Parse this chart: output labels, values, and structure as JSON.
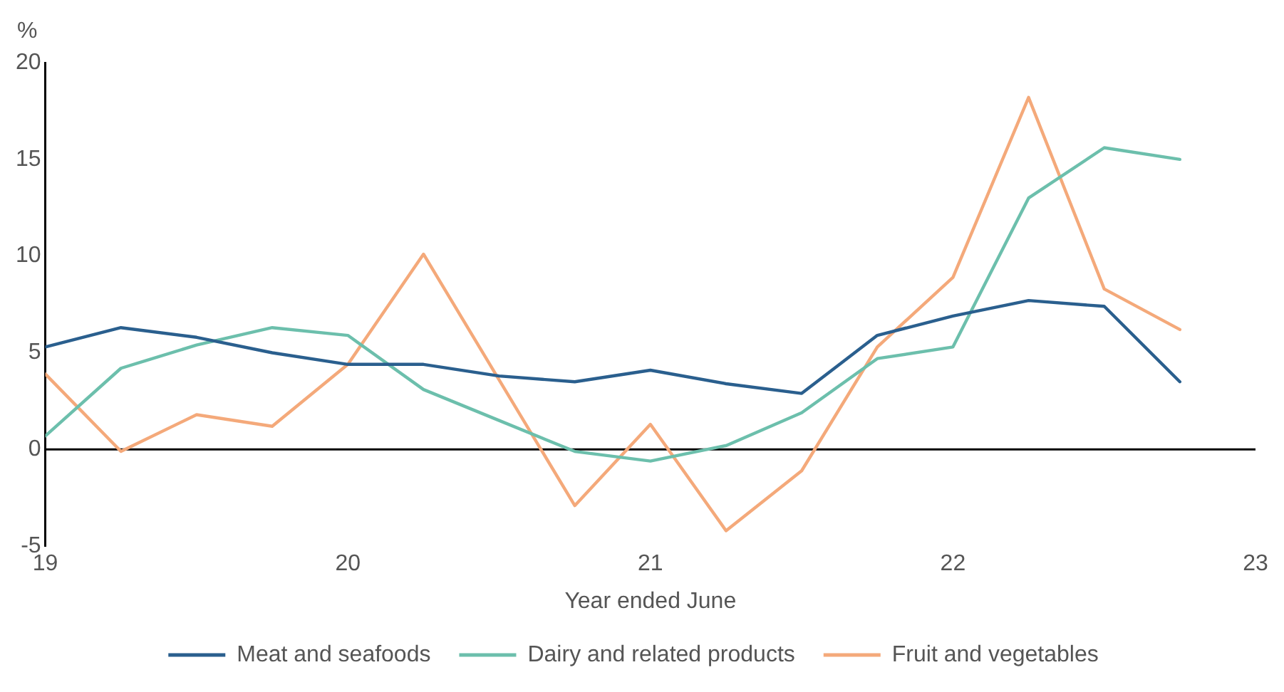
{
  "chart_data": {
    "type": "line",
    "xlabel": "Year ended June",
    "ylabel": "%",
    "x": [
      19,
      19.25,
      19.5,
      19.75,
      20,
      20.25,
      20.5,
      20.75,
      21,
      21.25,
      21.5,
      21.75,
      22,
      22.25,
      22.5,
      22.75
    ],
    "series": [
      {
        "name": "Meat and seafoods",
        "color": "#2a5f8e",
        "values": [
          5.3,
          6.3,
          5.8,
          5.0,
          4.4,
          4.4,
          3.8,
          3.5,
          4.1,
          3.4,
          2.9,
          5.9,
          6.9,
          7.7,
          7.4,
          3.5
        ]
      },
      {
        "name": "Dairy and related products",
        "color": "#6cbfac",
        "values": [
          0.7,
          4.2,
          5.4,
          6.3,
          5.9,
          3.1,
          1.5,
          -0.1,
          -0.6,
          0.2,
          1.9,
          4.7,
          5.3,
          13.0,
          15.6,
          15.0
        ]
      },
      {
        "name": "Fruit and vegetables",
        "color": "#f4a97a",
        "values": [
          3.9,
          -0.1,
          1.8,
          1.2,
          4.4,
          10.1,
          3.6,
          -2.9,
          1.3,
          -4.2,
          -1.1,
          5.3,
          8.9,
          18.2,
          8.3,
          6.2
        ]
      }
    ],
    "xlim": [
      19,
      23
    ],
    "xticks": [
      19,
      20,
      21,
      22,
      23
    ],
    "ylim": [
      -5,
      20
    ],
    "yticks": [
      -5,
      0,
      5,
      10,
      15,
      20
    ],
    "ref_lines": [
      {
        "axis": "y",
        "value": 0,
        "color": "#000000"
      }
    ],
    "grid": false,
    "legend": "bottom",
    "marker": "none",
    "line_style": "solid"
  }
}
